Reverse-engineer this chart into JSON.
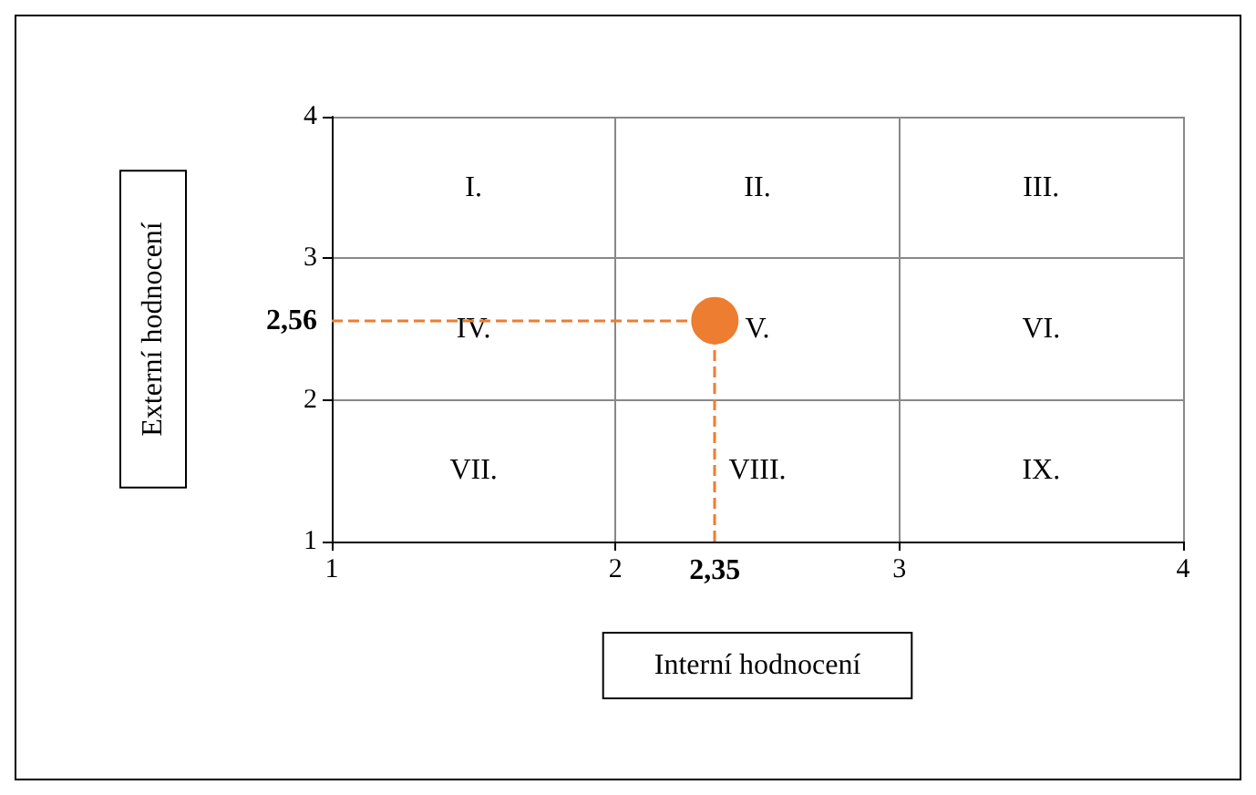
{
  "chart_data": {
    "type": "scatter",
    "xlabel": "Interní hodnocení",
    "ylabel": "Externí hodnocení",
    "x": [
      2.35
    ],
    "values": [
      2.56
    ],
    "color": "#ed7d31",
    "marker": "circle",
    "xlim": [
      1,
      4
    ],
    "ylim": [
      1,
      4
    ],
    "xticks": [
      1,
      2,
      3,
      4
    ],
    "yticks": [
      1,
      2,
      3,
      4
    ],
    "grid": true,
    "ref_lines": [
      {
        "axis": "x",
        "value": 2.35,
        "label": "2,35",
        "color": "#ed7d31",
        "line_style": "dashed"
      },
      {
        "axis": "y",
        "value": 2.56,
        "label": "2,56",
        "color": "#ed7d31",
        "line_style": "dashed"
      }
    ],
    "annotations": [
      "I.",
      "II.",
      "III.",
      "IV.",
      "V.",
      "VI.",
      "VII.",
      "VIII.",
      "IX."
    ]
  }
}
